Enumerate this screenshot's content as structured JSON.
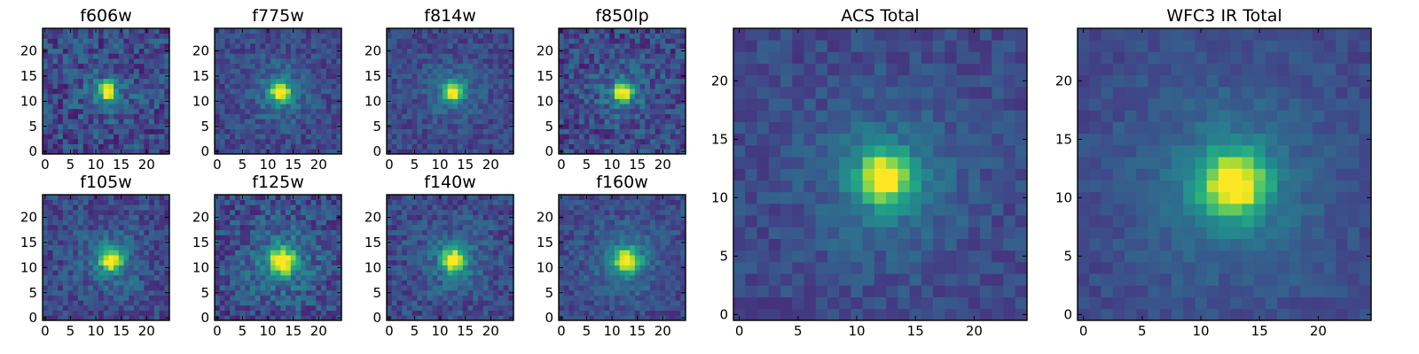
{
  "chart_data": [
    {
      "type": "heatmap",
      "title": "f606w",
      "xticks": [
        "0",
        "5",
        "10",
        "15",
        "20"
      ],
      "yticks": [
        "0",
        "5",
        "10",
        "15",
        "20"
      ],
      "xlim": [
        -0.5,
        24.5
      ],
      "ylim": [
        -0.5,
        24.5
      ],
      "grid": false,
      "colormap": "viridis",
      "noise": 0.32,
      "peak": [
        12.3,
        12.0
      ],
      "sigma": 1.1,
      "seed": 11
    },
    {
      "type": "heatmap",
      "title": "f775w",
      "xticks": [
        "0",
        "5",
        "10",
        "15",
        "20"
      ],
      "yticks": [
        "0",
        "5",
        "10",
        "15",
        "20"
      ],
      "xlim": [
        -0.5,
        24.5
      ],
      "ylim": [
        -0.5,
        24.5
      ],
      "grid": false,
      "colormap": "viridis",
      "noise": 0.22,
      "peak": [
        12.5,
        11.8
      ],
      "sigma": 1.3,
      "seed": 23
    },
    {
      "type": "heatmap",
      "title": "f814w",
      "xticks": [
        "0",
        "5",
        "10",
        "15",
        "20"
      ],
      "yticks": [
        "0",
        "5",
        "10",
        "15",
        "20"
      ],
      "xlim": [
        -0.5,
        24.5
      ],
      "ylim": [
        -0.5,
        24.5
      ],
      "grid": false,
      "colormap": "viridis",
      "noise": 0.2,
      "peak": [
        12.6,
        11.9
      ],
      "sigma": 1.2,
      "seed": 37
    },
    {
      "type": "heatmap",
      "title": "f850lp",
      "xticks": [
        "0",
        "5",
        "10",
        "15",
        "20"
      ],
      "yticks": [
        "0",
        "5",
        "10",
        "15",
        "20"
      ],
      "xlim": [
        -0.5,
        24.5
      ],
      "ylim": [
        -0.5,
        24.5
      ],
      "grid": false,
      "colormap": "viridis",
      "noise": 0.3,
      "peak": [
        12.2,
        11.8
      ],
      "sigma": 1.2,
      "seed": 41
    },
    {
      "type": "heatmap",
      "title": "f105w",
      "xticks": [
        "0",
        "5",
        "10",
        "15",
        "20"
      ],
      "yticks": [
        "0",
        "5",
        "10",
        "15",
        "20"
      ],
      "xlim": [
        -0.5,
        24.5
      ],
      "ylim": [
        -0.5,
        24.5
      ],
      "grid": false,
      "colormap": "viridis",
      "noise": 0.25,
      "peak": [
        13.0,
        11.5
      ],
      "sigma": 1.4,
      "seed": 53
    },
    {
      "type": "heatmap",
      "title": "f125w",
      "xticks": [
        "0",
        "5",
        "10",
        "15",
        "20"
      ],
      "yticks": [
        "0",
        "5",
        "10",
        "15",
        "20"
      ],
      "xlim": [
        -0.5,
        24.5
      ],
      "ylim": [
        -0.5,
        24.5
      ],
      "grid": false,
      "colormap": "viridis",
      "noise": 0.3,
      "peak": [
        12.8,
        11.3
      ],
      "sigma": 1.8,
      "seed": 67
    },
    {
      "type": "heatmap",
      "title": "f140w",
      "xticks": [
        "0",
        "5",
        "10",
        "15",
        "20"
      ],
      "yticks": [
        "0",
        "5",
        "10",
        "15",
        "20"
      ],
      "xlim": [
        -0.5,
        24.5
      ],
      "ylim": [
        -0.5,
        24.5
      ],
      "grid": false,
      "colormap": "viridis",
      "noise": 0.24,
      "peak": [
        12.8,
        11.5
      ],
      "sigma": 1.5,
      "seed": 71
    },
    {
      "type": "heatmap",
      "title": "f160w",
      "xticks": [
        "0",
        "5",
        "10",
        "15",
        "20"
      ],
      "yticks": [
        "0",
        "5",
        "10",
        "15",
        "20"
      ],
      "xlim": [
        -0.5,
        24.5
      ],
      "ylim": [
        -0.5,
        24.5
      ],
      "grid": false,
      "colormap": "viridis",
      "noise": 0.2,
      "peak": [
        12.9,
        11.4
      ],
      "sigma": 1.6,
      "seed": 83
    },
    {
      "type": "heatmap",
      "title": "ACS Total",
      "xticks": [
        "0",
        "5",
        "10",
        "15",
        "20"
      ],
      "yticks": [
        "0",
        "5",
        "10",
        "15",
        "20"
      ],
      "xlim": [
        -0.5,
        24.5
      ],
      "ylim": [
        -0.5,
        24.5
      ],
      "grid": false,
      "colormap": "viridis",
      "noise": 0.16,
      "peak": [
        12.4,
        11.7
      ],
      "sigma": 1.5,
      "seed": 97
    },
    {
      "type": "heatmap",
      "title": "WFC3 IR Total",
      "xticks": [
        "0",
        "5",
        "10",
        "15",
        "20"
      ],
      "yticks": [
        "0",
        "5",
        "10",
        "15",
        "20"
      ],
      "xlim": [
        -0.5,
        24.5
      ],
      "ylim": [
        -0.5,
        24.5
      ],
      "grid": false,
      "colormap": "viridis",
      "noise": 0.12,
      "peak": [
        12.8,
        11.2
      ],
      "sigma": 1.9,
      "seed": 101
    }
  ]
}
